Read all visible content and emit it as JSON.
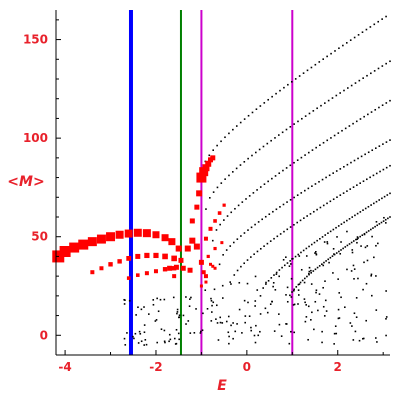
{
  "chart_data": {
    "type": "scatter",
    "xlabel": "E",
    "ylabel": "<M>",
    "xlim": [
      -4.2,
      3.15
    ],
    "ylim": [
      -10,
      165
    ],
    "xticks": [
      -4,
      -2,
      0,
      2
    ],
    "yticks": [
      0,
      50,
      100,
      150
    ],
    "grid": false,
    "colors": {
      "axis": "#000000",
      "labels": "#e8212b",
      "black_points": "#000000",
      "red_points": "#ff0000",
      "blue_line": "#0000ff",
      "green_line": "#008000",
      "magenta_line": "#cc00cc"
    },
    "vlines": [
      {
        "x": -2.55,
        "color": "#0000ff",
        "width": 4
      },
      {
        "x": -1.45,
        "color": "#008000",
        "width": 2
      },
      {
        "x": -1.0,
        "color": "#cc00cc",
        "width": 2
      },
      {
        "x": 1.0,
        "color": "#cc00cc",
        "width": 2
      }
    ],
    "black_dotted_curves": [
      {
        "x": [
          -1.0,
          3.15
        ],
        "y": [
          82,
          163
        ]
      },
      {
        "x": [
          -0.9,
          3.15
        ],
        "y": [
          64,
          139
        ]
      },
      {
        "x": [
          -0.75,
          3.15
        ],
        "y": [
          48,
          119
        ]
      },
      {
        "x": [
          -0.6,
          3.15
        ],
        "y": [
          36,
          99
        ]
      },
      {
        "x": [
          -0.35,
          3.15
        ],
        "y": [
          26,
          86
        ]
      },
      {
        "x": [
          0.3,
          3.15
        ],
        "y": [
          20,
          72
        ]
      },
      {
        "x": [
          0.9,
          3.15
        ],
        "y": [
          17,
          60
        ]
      }
    ],
    "black_cloud": {
      "xrange": [
        -2.7,
        3.1
      ],
      "yrange": [
        -5,
        60
      ],
      "count": 260
    },
    "red_series": [
      {
        "name": "",
        "x": [
          -4.15,
          -4.0,
          -3.8,
          -3.6,
          -3.4,
          -3.2,
          -3.0,
          -2.8,
          -2.6,
          -2.4,
          -2.2,
          -2.0,
          -1.8,
          -1.65,
          -1.5
        ],
        "y": [
          40,
          42.5,
          44.5,
          46,
          47.5,
          48.8,
          50,
          51,
          51.6,
          52,
          51.8,
          51,
          49.5,
          47.5,
          44
        ],
        "size": [
          6,
          5.5,
          5,
          5,
          4.5,
          4.5,
          4.5,
          4,
          4,
          4,
          4,
          3.5,
          3.5,
          3.5,
          3
        ]
      },
      {
        "name": "",
        "x": [
          -3.4,
          -3.2,
          -3.0,
          -2.8,
          -2.6,
          -2.4,
          -2.2,
          -2.0,
          -1.8,
          -1.6
        ],
        "y": [
          32,
          34,
          36,
          37.5,
          39,
          40,
          40.5,
          40.5,
          40,
          39
        ],
        "size": [
          2,
          2,
          2.2,
          2.2,
          2.4,
          2.5,
          2.6,
          2.6,
          2.8,
          2.8
        ]
      },
      {
        "name": "",
        "x": [
          -2.6,
          -2.4,
          -2.2,
          -2.0,
          -1.8,
          -1.6
        ],
        "y": [
          29,
          30.5,
          31.5,
          32.5,
          33.5,
          34
        ],
        "size": [
          1.8,
          1.8,
          2,
          2,
          2.2,
          2.2
        ]
      },
      {
        "name": "",
        "x": [
          -1.7,
          -1.55,
          -1.4,
          -1.25
        ],
        "y": [
          34,
          34.5,
          34,
          33
        ],
        "size": [
          2.5,
          2.5,
          2.5,
          2.5
        ]
      },
      {
        "name": "",
        "x": [
          -1.6,
          -1.45,
          -1.3,
          -1.2,
          -1.1,
          -1.0,
          -0.95,
          -0.9
        ],
        "y": [
          30,
          38,
          44,
          48,
          45,
          37,
          32,
          30
        ],
        "size": [
          2,
          2.5,
          3,
          3,
          3,
          2.5,
          2,
          2
        ]
      },
      {
        "name": "",
        "x": [
          -1.2,
          -1.1,
          -1.05,
          -1.0,
          -0.95,
          -0.9,
          -0.85,
          -0.8,
          -0.75
        ],
        "y": [
          58,
          65,
          72,
          80,
          83,
          85,
          87,
          89,
          90
        ],
        "size": [
          2.5,
          2.5,
          3,
          5,
          4.5,
          3.5,
          3,
          2.5,
          2.5
        ]
      },
      {
        "name": "",
        "x": [
          -0.9,
          -0.8,
          -0.7,
          -0.6,
          -0.5
        ],
        "y": [
          49,
          54,
          58,
          62,
          66
        ],
        "size": [
          2,
          2,
          1.8,
          1.8,
          1.6
        ]
      },
      {
        "name": "",
        "x": [
          -0.85,
          -0.7,
          -0.55
        ],
        "y": [
          40,
          44,
          47
        ],
        "size": [
          1.6,
          1.6,
          1.5
        ]
      },
      {
        "name": "",
        "x": [
          -0.8,
          -0.75,
          -0.7,
          -0.9,
          -1.0
        ],
        "y": [
          36,
          35,
          34,
          27,
          25
        ],
        "size": [
          1.5,
          1.5,
          1.5,
          1.5,
          1.5
        ]
      }
    ]
  }
}
